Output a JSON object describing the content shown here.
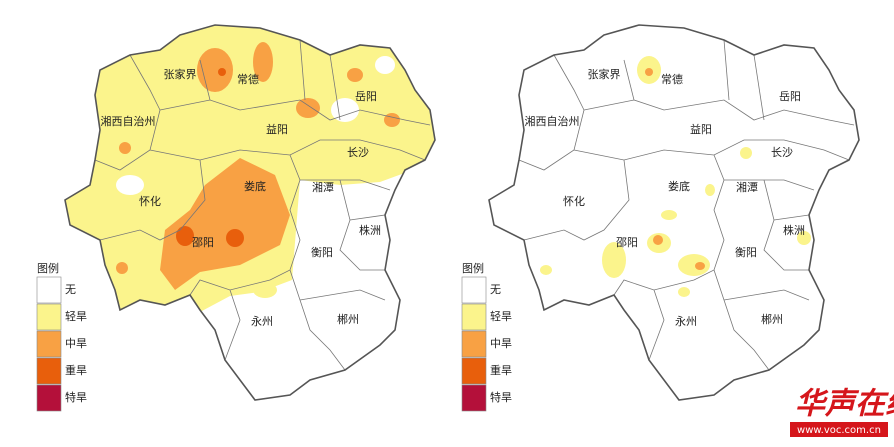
{
  "maps": [
    {
      "labels": [
        "张家界",
        "常德",
        "岳阳",
        "湘西自治州",
        "益阳",
        "长沙",
        "怀化",
        "娄底",
        "湘潭",
        "株洲",
        "邵阳",
        "衡阳",
        "永州",
        "郴州"
      ]
    },
    {
      "labels": [
        "张家界",
        "常德",
        "岳阳",
        "湘西自治州",
        "益阳",
        "长沙",
        "怀化",
        "娄底",
        "湘潭",
        "株洲",
        "邵阳",
        "衡阳",
        "永州",
        "郴州"
      ]
    }
  ],
  "legend": {
    "title": "图例",
    "items": [
      {
        "label": "无",
        "color": "#ffffff"
      },
      {
        "label": "轻旱",
        "color": "#fbf48c"
      },
      {
        "label": "中旱",
        "color": "#f8a144"
      },
      {
        "label": "重旱",
        "color": "#e85f0c"
      },
      {
        "label": "特旱",
        "color": "#b4103a"
      }
    ]
  },
  "watermark": {
    "title": "华声在线",
    "url": "www.voc.com.cn"
  }
}
